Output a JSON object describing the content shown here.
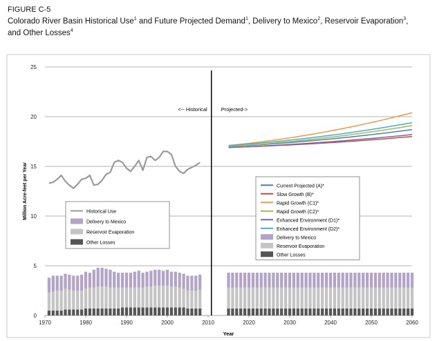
{
  "figure": {
    "label": "FIGURE C-5",
    "title_parts": [
      {
        "text": "Colorado River Basin Historical Use",
        "sup": false
      },
      {
        "text": "1",
        "sup": true
      },
      {
        "text": " and Future Projected Demand",
        "sup": false
      },
      {
        "text": "1",
        "sup": true
      },
      {
        "text": ", Delivery to Mexico",
        "sup": false
      },
      {
        "text": "2",
        "sup": true
      },
      {
        "text": ", Reservoir Evaporation",
        "sup": false
      },
      {
        "text": "3",
        "sup": true
      },
      {
        "text": ", and Other Losses",
        "sup": false
      },
      {
        "text": "4",
        "sup": true
      }
    ]
  },
  "colors": {
    "historical": "#9a9a9a",
    "mexico": "#b3a3c7",
    "evaporation": "#c4c4c4",
    "other": "#555555",
    "current": "#4a7ebb",
    "slow": "#be4b48",
    "rapid_c1": "#f79646",
    "rapid_c2": "#9bbb59",
    "enh_d1": "#7f63a2",
    "enh_d2": "#4bacc6"
  },
  "chart_data": {
    "type": "line",
    "xlabel": "Year",
    "ylabel": "Million Acre-feet per Year",
    "xlim": [
      1970,
      2060
    ],
    "ylim": [
      0,
      25
    ],
    "x_ticks": [
      "1970",
      "1980",
      "1990",
      "2000",
      "2010",
      "2020",
      "2030",
      "2040",
      "2050",
      "2060"
    ],
    "y_ticks": [
      "0",
      "5",
      "10",
      "15",
      "20",
      "25"
    ],
    "grid": "horizontal",
    "divider_year": 2010.8,
    "annotations": {
      "historical": "<-- Historical",
      "projected": "Projected->"
    },
    "historical": {
      "years": [
        1971,
        1972,
        1973,
        1974,
        1975,
        1976,
        1977,
        1978,
        1979,
        1980,
        1981,
        1982,
        1983,
        1984,
        1985,
        1986,
        1987,
        1988,
        1989,
        1990,
        1991,
        1992,
        1993,
        1994,
        1995,
        1996,
        1997,
        1998,
        1999,
        2000,
        2001,
        2002,
        2003,
        2004,
        2005,
        2006,
        2007,
        2008
      ],
      "use": [
        13.3,
        13.4,
        13.7,
        14.1,
        13.5,
        13.1,
        12.8,
        13.2,
        13.7,
        13.8,
        14.1,
        13.1,
        13.2,
        13.6,
        14.2,
        14.4,
        15.4,
        15.6,
        15.4,
        14.8,
        14.5,
        15.0,
        15.6,
        14.6,
        15.9,
        16.0,
        15.6,
        15.9,
        16.5,
        16.5,
        16.2,
        15.0,
        14.5,
        14.3,
        14.7,
        14.9,
        15.1,
        15.4
      ],
      "mexico": [
        1.5,
        1.6,
        1.5,
        1.5,
        1.5,
        1.5,
        1.5,
        1.5,
        1.6,
        1.7,
        1.5,
        1.8,
        1.9,
        1.9,
        1.8,
        1.8,
        1.6,
        1.5,
        1.5,
        1.5,
        1.5,
        1.6,
        1.7,
        1.5,
        1.5,
        1.6,
        1.6,
        1.6,
        1.5,
        1.6,
        1.5,
        1.5,
        1.5,
        1.5,
        1.5,
        1.5,
        1.5,
        1.5
      ],
      "evaporation": [
        1.8,
        1.9,
        2.0,
        2.0,
        2.1,
        2.0,
        1.9,
        1.9,
        1.9,
        2.0,
        2.1,
        2.1,
        2.2,
        2.2,
        2.2,
        2.1,
        2.1,
        2.1,
        2.0,
        2.0,
        2.0,
        2.0,
        2.0,
        2.0,
        2.1,
        2.1,
        2.2,
        2.2,
        2.2,
        2.2,
        2.1,
        2.1,
        2.0,
        1.9,
        1.8,
        1.8,
        1.8,
        1.9
      ],
      "other": [
        0.5,
        0.5,
        0.5,
        0.5,
        0.6,
        0.6,
        0.6,
        0.6,
        0.6,
        0.7,
        0.7,
        0.7,
        0.7,
        0.7,
        0.7,
        0.7,
        0.7,
        0.7,
        0.8,
        0.8,
        0.8,
        0.8,
        0.8,
        0.8,
        0.8,
        0.8,
        0.8,
        0.8,
        0.8,
        0.8,
        0.8,
        0.8,
        0.8,
        0.8,
        0.7,
        0.7,
        0.7,
        0.7
      ]
    },
    "projected": {
      "years": [
        2015,
        2016,
        2017,
        2018,
        2019,
        2020,
        2021,
        2022,
        2023,
        2024,
        2025,
        2026,
        2027,
        2028,
        2029,
        2030,
        2031,
        2032,
        2033,
        2034,
        2035,
        2036,
        2037,
        2038,
        2039,
        2040,
        2041,
        2042,
        2043,
        2044,
        2045,
        2046,
        2047,
        2048,
        2049,
        2050,
        2051,
        2052,
        2053,
        2054,
        2055,
        2056,
        2057,
        2058,
        2059,
        2060
      ],
      "mexico": 1.5,
      "evaporation": 2.1,
      "other": 0.7,
      "series": [
        {
          "name": "Current Projected (A)*",
          "color_key": "current",
          "start": 17.0,
          "end": 18.7
        },
        {
          "name": "Slow Growth (B)*",
          "color_key": "slow",
          "start": 16.9,
          "end": 18.0
        },
        {
          "name": "Rapid Growth (C1)*",
          "color_key": "rapid_c1",
          "start": 17.1,
          "end": 20.4
        },
        {
          "name": "Rapid Growth (C2)*",
          "color_key": "rapid_c2",
          "start": 17.0,
          "end": 19.1
        },
        {
          "name": "Enhanced Environment (D1)*",
          "color_key": "enh_d1",
          "start": 16.9,
          "end": 18.2
        },
        {
          "name": "Enhanced Environment (D2)*",
          "color_key": "enh_d2",
          "start": 17.1,
          "end": 19.4
        }
      ]
    },
    "legend_historical": [
      {
        "label": "Historical Use",
        "kind": "line",
        "color_key": "historical"
      },
      {
        "label": "Delivery to Mexico",
        "kind": "box",
        "color_key": "mexico"
      },
      {
        "label": "Reservoir Evaporation",
        "kind": "box",
        "color_key": "evaporation"
      },
      {
        "label": "Other Losses",
        "kind": "box",
        "color_key": "other"
      }
    ],
    "legend_projected": [
      {
        "label": "Current Projected (A)*",
        "kind": "line",
        "color_key": "current"
      },
      {
        "label": "Slow Growth (B)*",
        "kind": "line",
        "color_key": "slow"
      },
      {
        "label": "Rapid Growth (C1)*",
        "kind": "line",
        "color_key": "rapid_c1"
      },
      {
        "label": "Rapid Growth (C2)*",
        "kind": "line",
        "color_key": "rapid_c2"
      },
      {
        "label": "Enhanced Environment (D1)*",
        "kind": "line",
        "color_key": "enh_d1"
      },
      {
        "label": "Enhanced Environment (D2)*",
        "kind": "line",
        "color_key": "enh_d2"
      },
      {
        "label": "Delivery to Mexico",
        "kind": "box",
        "color_key": "mexico"
      },
      {
        "label": "Reservoir Evaporation",
        "kind": "box",
        "color_key": "evaporation"
      },
      {
        "label": "Other Losses",
        "kind": "box",
        "color_key": "other"
      }
    ]
  }
}
